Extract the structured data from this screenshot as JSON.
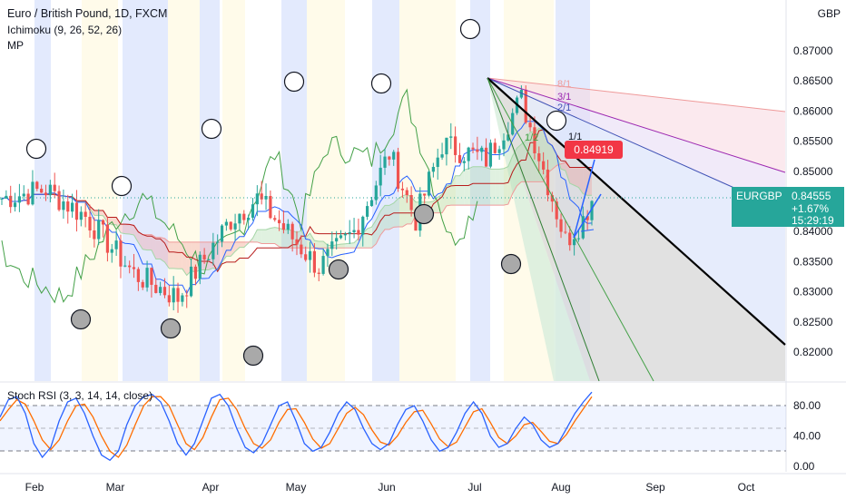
{
  "header": {
    "title": "Euro / British Pound, 1D, FXCM",
    "indicator_ichimoku": "Ichimoku (9, 26, 52, 26)",
    "indicator_mp": "MP",
    "currency": "GBP"
  },
  "price_tag": {
    "symbol": "EURGBP",
    "price": "0.84555",
    "change": "+1.67%",
    "countdown": "15:29:19"
  },
  "target_tag": "0.84919",
  "fan_labels": [
    "8/1",
    "3/1",
    "2/1",
    "1/1",
    "1/2"
  ],
  "stoch_title": "Stoch RSI (3, 3, 14, 14, close)",
  "colors": {
    "up": "#26a69a",
    "down": "#ef5350",
    "k_line": "#2962ff",
    "d_line": "#ff6d00",
    "tenkan": "#2962ff",
    "kijun": "#b71c1c",
    "chikou": "#43a047",
    "span_a": "#a5d6a7",
    "span_b": "#ef9a9a",
    "trendline": "#000000",
    "target": "#f23645"
  },
  "chart_data": [
    {
      "type": "candlestick",
      "title": "Euro / British Pound, 1D, FXCM",
      "x_tick_labels": [
        "Feb",
        "Mar",
        "Apr",
        "May",
        "Jun",
        "Jul",
        "Aug",
        "Sep",
        "Oct"
      ],
      "y_tick_labels": [
        "0.82000",
        "0.82500",
        "0.83000",
        "0.83500",
        "0.84000",
        "0.84500",
        "0.85000",
        "0.85500",
        "0.86000",
        "0.86500",
        "0.87000"
      ],
      "ylim": [
        0.8155,
        0.8755
      ],
      "ylabel": "GBP",
      "last_price": 0.84555,
      "grid": false,
      "indicators": [
        "Ichimoku (9, 26, 52, 26)",
        "MP"
      ],
      "closes_by_month": [
        {
          "month": "Feb",
          "close": 0.8425
        },
        {
          "month": "Mar",
          "close": 0.8292
        },
        {
          "month": "Apr",
          "close": 0.845
        },
        {
          "month": "May",
          "close": 0.8407
        },
        {
          "month": "Jun",
          "close": 0.8543
        },
        {
          "month": "Jul",
          "close": 0.8583
        },
        {
          "month": "Aug",
          "close": 0.8385
        }
      ],
      "period_high": 0.872,
      "period_low": 0.8205,
      "fan_levels": [
        "8/1",
        "3/1",
        "2/1",
        "1/1",
        "1/2"
      ],
      "target_price": 0.84919
    },
    {
      "type": "line",
      "title": "Stoch RSI (3, 3, 14, 14, close)",
      "y_tick_labels": [
        "0.00",
        "40.00",
        "80.00"
      ],
      "ylim": [
        0,
        100
      ],
      "reference_lines": [
        20,
        50,
        80
      ],
      "series": [
        {
          "values": [
            65,
            88,
            92,
            70,
            30,
            12,
            25,
            60,
            85,
            90,
            70,
            40,
            15,
            8,
            20,
            55,
            80,
            92,
            95,
            85,
            60,
            30,
            15,
            30,
            60,
            90,
            95,
            80,
            50,
            25,
            18,
            30,
            55,
            80,
            85,
            60,
            30,
            20,
            25,
            45,
            70,
            85,
            75,
            50,
            30,
            22,
            30,
            55,
            75,
            80,
            60,
            35,
            20,
            25,
            45,
            70,
            85,
            70,
            40,
            25,
            30,
            50,
            65,
            55,
            35,
            25,
            30,
            50,
            70,
            85,
            98
          ]
        },
        {
          "values": [
            60,
            75,
            88,
            82,
            60,
            35,
            22,
            35,
            60,
            80,
            82,
            65,
            40,
            20,
            12,
            28,
            55,
            80,
            92,
            92,
            80,
            55,
            30,
            22,
            38,
            65,
            88,
            90,
            75,
            50,
            30,
            24,
            35,
            58,
            75,
            76,
            58,
            36,
            24,
            30,
            50,
            70,
            78,
            68,
            48,
            32,
            28,
            40,
            58,
            72,
            74,
            56,
            36,
            26,
            32,
            52,
            72,
            76,
            58,
            38,
            30,
            40,
            55,
            58,
            46,
            33,
            30,
            42,
            60,
            76,
            92
          ]
        }
      ]
    }
  ]
}
